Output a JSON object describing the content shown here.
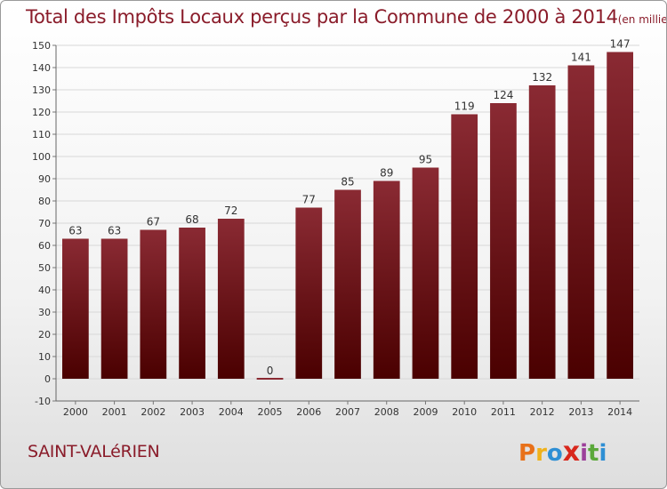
{
  "header": {
    "title": "Total des Impôts Locaux perçus par la Commune de 2000 à 2014",
    "unit": "(en milliers d'€)"
  },
  "footer": {
    "commune": "SAINT-VALéRIEN",
    "logo_text": "Proxiti",
    "logo_icon": "proxiti-logo",
    "logo_colors": [
      "#e8711a",
      "#f0b21b",
      "#2e8fd4",
      "#d8271c",
      "#9c3f9a",
      "#5aa83a",
      "#2e8fd4"
    ]
  },
  "colors": {
    "bar_top": "#8a2a33",
    "bar_bottom": "#4a0000",
    "title": "#8a1c2a",
    "grid": "#d8d8d8"
  },
  "chart_data": {
    "type": "bar",
    "categories": [
      "2000",
      "2001",
      "2002",
      "2003",
      "2004",
      "2005",
      "2006",
      "2007",
      "2008",
      "2009",
      "2010",
      "2011",
      "2012",
      "2013",
      "2014"
    ],
    "values": [
      63,
      63,
      67,
      68,
      72,
      0,
      77,
      85,
      89,
      95,
      119,
      124,
      132,
      141,
      147
    ],
    "data_labels": [
      "63",
      "63",
      "67",
      "68",
      "72",
      "0",
      "77",
      "85",
      "89",
      "95",
      "119",
      "124",
      "132",
      "141",
      "147"
    ],
    "ylim": [
      -10,
      150
    ],
    "yticks": [
      -10,
      0,
      10,
      20,
      30,
      40,
      50,
      60,
      70,
      80,
      90,
      100,
      110,
      120,
      130,
      140,
      150
    ],
    "grid": true,
    "legend": "none"
  }
}
